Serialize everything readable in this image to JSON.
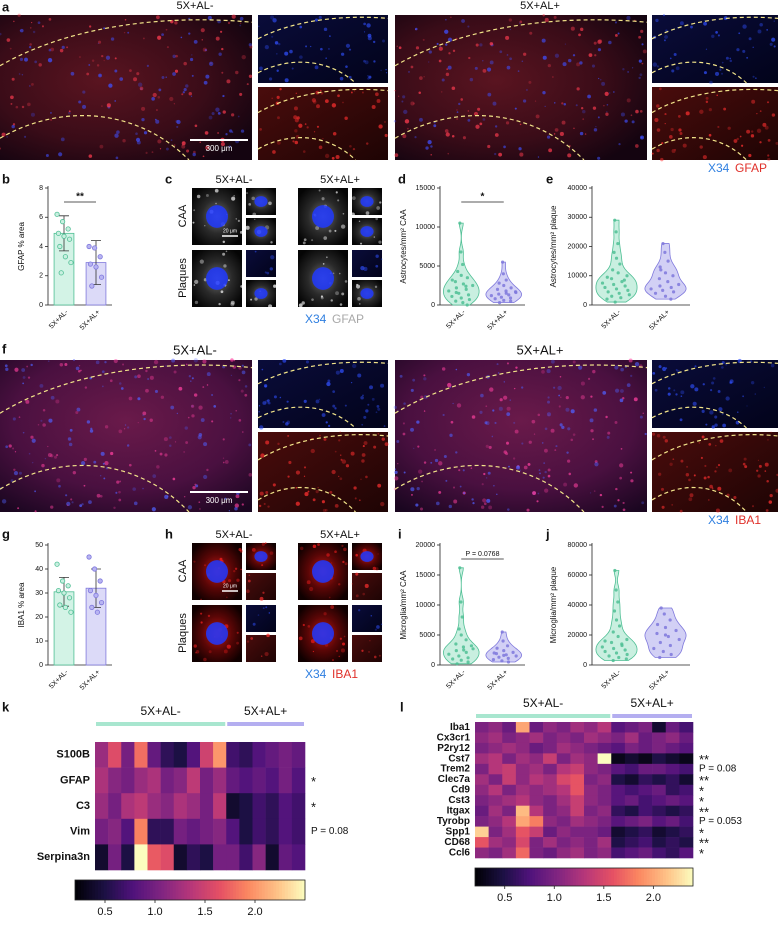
{
  "a": {
    "label": "a",
    "titles": [
      "5X+AL-",
      "5X+AL+"
    ],
    "scale_bar": "300 μm",
    "stains": [
      {
        "text": "X34",
        "color": "#2f7fe0"
      },
      {
        "text": "GFAP",
        "color": "#e0302a"
      }
    ]
  },
  "b": {
    "label": "b",
    "type": "bar",
    "ylabel": "GFAP % area",
    "categories": [
      "5X+AL-",
      "5X+AL+"
    ],
    "colors": [
      "#d3f3e6",
      "#dcdaf8"
    ],
    "edge_colors": [
      "#4fbf94",
      "#7f78dc"
    ],
    "values": [
      4.9,
      2.9
    ],
    "errors": [
      1.2,
      1.5
    ],
    "points": [
      [
        6.2,
        5.7,
        5.2,
        4.9,
        4.7,
        4.5,
        4.0,
        3.3,
        2.9,
        2.2
      ],
      [
        4.0,
        3.9,
        3.3,
        2.8,
        2.6,
        1.9,
        1.3
      ]
    ],
    "ylim": [
      0,
      8
    ],
    "yticks": [
      0,
      2,
      4,
      6,
      8
    ],
    "significance": "**"
  },
  "c": {
    "label": "c",
    "columns": [
      "5X+AL-",
      "5X+AL+"
    ],
    "rows": [
      "CAA",
      "Plaques"
    ],
    "scale_bar": "20 μm",
    "stains": [
      {
        "text": "X34",
        "color": "#2f7fe0"
      },
      {
        "text": "GFAP",
        "color": "#a8a8a8"
      }
    ]
  },
  "d": {
    "label": "d",
    "type": "violin",
    "ylabel": "Astrocytes/mm² CAA",
    "ylim": [
      0,
      15000
    ],
    "yticks": [
      0,
      5000,
      10000,
      15000
    ],
    "significance": "*",
    "series": [
      {
        "name": "5X+AL-",
        "color": "#4fbf94",
        "fill": "#c9efe0",
        "values": [
          10500,
          6800,
          5200,
          4300,
          3800,
          3500,
          3000,
          2700,
          2500,
          2200,
          2000,
          1800,
          1500,
          1300,
          1100,
          900,
          700,
          500,
          300,
          0,
          1600,
          2400,
          3200
        ]
      },
      {
        "name": "5X+AL+",
        "color": "#7f78dc",
        "fill": "#d2d0f5",
        "values": [
          5500,
          4000,
          3200,
          2800,
          2500,
          2200,
          2000,
          1800,
          1600,
          1400,
          1300,
          1200,
          1000,
          900,
          800,
          600,
          500,
          300,
          1500,
          1700
        ]
      }
    ]
  },
  "e": {
    "label": "e",
    "type": "violin",
    "ylabel": "Astrocytes/mm² plaque",
    "ylim": [
      0,
      40000
    ],
    "yticks": [
      0,
      10000,
      20000,
      30000,
      40000
    ],
    "series": [
      {
        "name": "5X+AL-",
        "color": "#4fbf94",
        "fill": "#c9efe0",
        "values": [
          29000,
          25000,
          21000,
          18000,
          16000,
          14000,
          12000,
          11000,
          10000,
          9000,
          8000,
          7500,
          7000,
          6500,
          6000,
          5500,
          5000,
          4500,
          4000,
          3500,
          3000,
          2500,
          2000,
          1000,
          8500,
          9500
        ]
      },
      {
        "name": "5X+AL+",
        "color": "#7f78dc",
        "fill": "#d2d0f5",
        "values": [
          21000,
          18000,
          15000,
          13000,
          11000,
          10000,
          9000,
          8000,
          7000,
          6500,
          6000,
          5500,
          5000,
          4500,
          4000,
          3000,
          2000,
          12000
        ]
      }
    ]
  },
  "f": {
    "label": "f",
    "titles": [
      "5X+AL-",
      "5X+AL+"
    ],
    "scale_bar": "300 μm",
    "stains": [
      {
        "text": "X34",
        "color": "#2f7fe0"
      },
      {
        "text": "IBA1",
        "color": "#e0302a"
      }
    ]
  },
  "g": {
    "label": "g",
    "type": "bar",
    "ylabel": "IBA1 % area",
    "categories": [
      "5X+AL-",
      "5X+AL+"
    ],
    "colors": [
      "#d3f3e6",
      "#dcdaf8"
    ],
    "edge_colors": [
      "#4fbf94",
      "#7f78dc"
    ],
    "values": [
      30.5,
      32
    ],
    "errors": [
      6,
      8
    ],
    "points": [
      [
        42,
        35,
        33,
        31,
        30,
        28,
        25,
        24,
        22
      ],
      [
        45,
        40,
        35,
        31,
        29,
        26,
        24,
        22
      ]
    ],
    "ylim": [
      0,
      50
    ],
    "yticks": [
      0,
      10,
      20,
      30,
      40,
      50
    ]
  },
  "h": {
    "label": "h",
    "columns": [
      "5X+AL-",
      "5X+AL+"
    ],
    "rows": [
      "CAA",
      "Plaques"
    ],
    "scale_bar": "20 μm",
    "stains": [
      {
        "text": "X34",
        "color": "#2f7fe0"
      },
      {
        "text": "IBA1",
        "color": "#e0302a"
      }
    ]
  },
  "i": {
    "label": "i",
    "type": "violin",
    "ylabel": "Microglia/mm² CAA",
    "ylim": [
      0,
      20000
    ],
    "yticks": [
      0,
      5000,
      10000,
      15000,
      20000
    ],
    "significance": "P = 0.0768",
    "series": [
      {
        "name": "5X+AL-",
        "color": "#4fbf94",
        "fill": "#c9efe0",
        "values": [
          16200,
          10500,
          8000,
          6000,
          5000,
          4200,
          3500,
          3000,
          2700,
          2400,
          2100,
          1800,
          1500,
          1200,
          1000,
          800,
          500,
          200,
          2500,
          3200
        ]
      },
      {
        "name": "5X+AL+",
        "color": "#7f78dc",
        "fill": "#d2d0f5",
        "values": [
          5500,
          4000,
          3200,
          2800,
          2400,
          2100,
          1900,
          1700,
          1500,
          1300,
          1100,
          900,
          700,
          500,
          2000,
          1600
        ]
      }
    ]
  },
  "j": {
    "label": "j",
    "type": "violin",
    "ylabel": "Microglia/mm² plaque",
    "ylim": [
      0,
      80000
    ],
    "yticks": [
      0,
      20000,
      40000,
      60000,
      80000
    ],
    "series": [
      {
        "name": "5X+AL-",
        "color": "#4fbf94",
        "fill": "#c9efe0",
        "values": [
          63000,
          50000,
          42000,
          36000,
          30000,
          26000,
          22000,
          19000,
          17000,
          15000,
          13000,
          12000,
          11000,
          10000,
          9000,
          8000,
          7000,
          6000,
          5000,
          4000,
          3000,
          14000,
          16000
        ]
      },
      {
        "name": "5X+AL+",
        "color": "#7f78dc",
        "fill": "#d2d0f5",
        "values": [
          38000,
          34000,
          30000,
          27000,
          25000,
          23000,
          21000,
          19000,
          17000,
          15000,
          13000,
          11000,
          9000,
          7000,
          5000,
          20000
        ]
      }
    ]
  },
  "k": {
    "label": "k",
    "type": "heatmap",
    "clim": [
      0.2,
      2.5
    ],
    "cbar_ticks": [
      0.5,
      {
        "value": 1,
        "label": "1.0"
      },
      1.5,
      {
        "value": 2,
        "label": "2.0"
      }
    ],
    "groups": [
      {
        "name": "5X+AL-",
        "n_columns": 10,
        "color": "#a8e6cf"
      },
      {
        "name": "5X+AL+",
        "n_columns": 6,
        "color": "#b4aef0"
      }
    ],
    "rows": [
      {
        "gene": "S100B",
        "values": [
          1.2,
          1.6,
          1.0,
          1.8,
          0.9,
          0.6,
          0.5,
          0.8,
          1.5,
          2.0,
          0.7,
          0.6,
          0.8,
          0.9,
          1.0,
          0.9
        ]
      },
      {
        "gene": "GFAP",
        "sig": "*",
        "values": [
          1.3,
          1.1,
          1.0,
          1.2,
          1.3,
          1.0,
          1.1,
          1.4,
          1.0,
          1.2,
          0.9,
          0.8,
          0.9,
          0.8,
          1.0,
          0.8
        ]
      },
      {
        "gene": "C3",
        "sig": "*",
        "values": [
          1.2,
          1.0,
          1.3,
          1.4,
          1.2,
          1.1,
          1.3,
          1.2,
          1.0,
          1.4,
          0.4,
          0.5,
          0.7,
          0.6,
          0.8,
          0.7
        ]
      },
      {
        "gene": "Vim",
        "sig": "P = 0.08",
        "values": [
          1.0,
          1.1,
          0.8,
          1.9,
          0.6,
          0.6,
          1.0,
          0.9,
          1.0,
          1.1,
          0.8,
          0.5,
          0.7,
          0.6,
          0.8,
          0.7
        ]
      },
      {
        "gene": "Serpina3n",
        "values": [
          0.4,
          1.0,
          0.5,
          2.5,
          1.7,
          1.6,
          0.4,
          0.6,
          0.5,
          1.0,
          1.0,
          0.7,
          1.1,
          0.4,
          0.9,
          0.8
        ]
      }
    ]
  },
  "l": {
    "label": "l",
    "type": "heatmap",
    "clim": [
      0.2,
      2.4
    ],
    "cbar_ticks": [
      0.5,
      {
        "value": 1,
        "label": "1.0"
      },
      1.5,
      {
        "value": 2,
        "label": "2.0"
      }
    ],
    "groups": [
      {
        "name": "5X+AL-",
        "n_columns": 10,
        "color": "#a8e6cf"
      },
      {
        "name": "5X+AL+",
        "n_columns": 6,
        "color": "#b4aef0"
      }
    ],
    "rows": [
      {
        "gene": "Iba1",
        "values": [
          1.0,
          1.1,
          0.9,
          2.0,
          0.9,
          1.1,
          1.0,
          1.2,
          1.1,
          1.3,
          0.8,
          0.9,
          1.0,
          0.4,
          0.9,
          0.7
        ]
      },
      {
        "gene": "Cx3cr1",
        "values": [
          1.1,
          1.2,
          1.0,
          1.1,
          1.2,
          1.0,
          1.1,
          1.0,
          1.2,
          1.1,
          1.0,
          1.2,
          0.9,
          1.0,
          1.1,
          0.9
        ]
      },
      {
        "gene": "P2ry12",
        "values": [
          1.0,
          1.1,
          1.2,
          1.1,
          0.9,
          1.0,
          1.2,
          1.1,
          1.0,
          0.9,
          0.8,
          1.0,
          0.9,
          1.0,
          0.9,
          0.8
        ]
      },
      {
        "gene": "Cst7",
        "sig": "**",
        "values": [
          1.2,
          1.3,
          1.0,
          1.2,
          1.1,
          1.4,
          1.0,
          1.2,
          1.1,
          2.4,
          0.3,
          0.4,
          0.3,
          0.5,
          0.4,
          0.3
        ]
      },
      {
        "gene": "Trem2",
        "sig": "P = 0.08",
        "values": [
          1.0,
          1.3,
          1.4,
          1.1,
          1.2,
          1.0,
          1.3,
          1.4,
          1.1,
          1.0,
          0.8,
          0.7,
          0.9,
          0.9,
          0.8,
          0.7
        ]
      },
      {
        "gene": "Clec7a",
        "sig": "**",
        "values": [
          1.2,
          1.0,
          1.4,
          1.1,
          1.3,
          1.2,
          1.5,
          1.6,
          1.0,
          1.1,
          0.5,
          0.4,
          0.6,
          0.5,
          0.6,
          0.4
        ]
      },
      {
        "gene": "Cd9",
        "sig": "*",
        "values": [
          1.1,
          1.3,
          1.0,
          1.2,
          1.1,
          1.2,
          1.3,
          1.6,
          1.1,
          1.0,
          0.8,
          0.7,
          0.8,
          0.9,
          0.6,
          0.7
        ]
      },
      {
        "gene": "Cst3",
        "sig": "*",
        "values": [
          1.0,
          1.1,
          1.2,
          1.3,
          1.1,
          1.0,
          1.2,
          1.4,
          1.1,
          1.0,
          0.8,
          0.9,
          0.7,
          0.8,
          0.9,
          0.8
        ]
      },
      {
        "gene": "Itgax",
        "sig": "**",
        "values": [
          0.9,
          1.2,
          1.0,
          2.1,
          1.3,
          1.0,
          1.1,
          1.4,
          1.0,
          1.1,
          0.6,
          0.5,
          0.7,
          0.6,
          0.5,
          0.6
        ]
      },
      {
        "gene": "Tyrobp",
        "sig": "P = 0.053",
        "values": [
          1.0,
          1.1,
          1.3,
          2.0,
          1.8,
          1.1,
          1.0,
          1.2,
          1.1,
          1.0,
          0.8,
          0.9,
          1.0,
          0.8,
          0.9,
          0.7
        ]
      },
      {
        "gene": "Spp1",
        "sig": "*",
        "values": [
          2.2,
          1.0,
          1.2,
          1.6,
          1.4,
          0.9,
          1.1,
          1.0,
          1.0,
          0.9,
          0.4,
          0.5,
          0.6,
          0.4,
          0.5,
          0.6
        ]
      },
      {
        "gene": "CD68",
        "sig": "**",
        "values": [
          1.6,
          1.2,
          1.1,
          1.5,
          1.0,
          1.2,
          1.0,
          1.1,
          1.0,
          1.2,
          0.5,
          0.6,
          0.7,
          0.5,
          0.6,
          0.5
        ]
      },
      {
        "gene": "Ccl6",
        "sig": "*",
        "values": [
          1.1,
          1.0,
          1.2,
          1.7,
          1.0,
          0.9,
          1.1,
          1.2,
          1.0,
          1.1,
          0.7,
          0.8,
          0.9,
          0.7,
          0.6,
          0.8
        ]
      }
    ]
  }
}
